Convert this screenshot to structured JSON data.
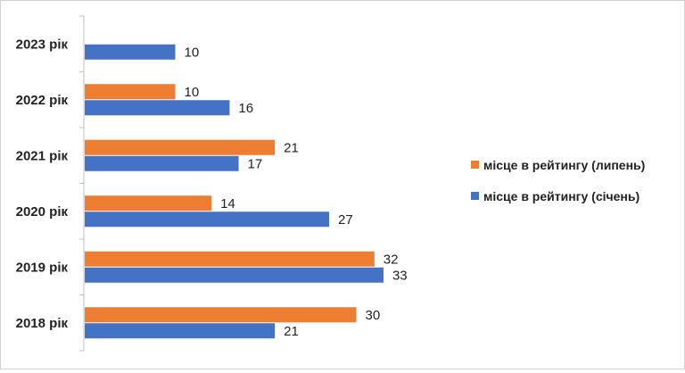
{
  "chart_data": {
    "type": "bar",
    "orientation": "horizontal",
    "categories": [
      "2023 рік",
      "2022 рік",
      "2021 рік",
      "2020 рік",
      "2019 рік",
      "2018 рік"
    ],
    "series": [
      {
        "name": "місце в рейтингу (липень)",
        "color": "#ED7D31",
        "values": [
          null,
          10,
          21,
          14,
          32,
          30
        ]
      },
      {
        "name": "місце в рейтингу (січень)",
        "color": "#4472C4",
        "values": [
          10,
          16,
          17,
          27,
          33,
          21
        ]
      }
    ],
    "xlim": [
      0,
      33
    ],
    "grid": false,
    "legend": "right"
  }
}
